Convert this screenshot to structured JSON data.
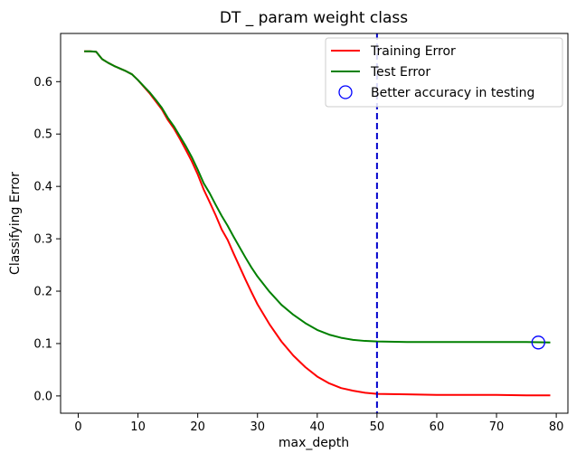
{
  "chart_data": {
    "type": "line",
    "title": "DT _ param weight class",
    "xlabel": "max_depth",
    "ylabel": "Classifying Error",
    "xlim": [
      -2.95,
      81.95
    ],
    "ylim": [
      -0.033,
      0.692
    ],
    "xticks": [
      0,
      10,
      20,
      30,
      40,
      50,
      60,
      70,
      80
    ],
    "yticks": [
      0.0,
      0.1,
      0.2,
      0.3,
      0.4,
      0.5,
      0.6
    ],
    "xtick_labels": [
      "0",
      "10",
      "20",
      "30",
      "40",
      "50",
      "60",
      "70",
      "80"
    ],
    "ytick_labels": [
      "0.0",
      "0.1",
      "0.2",
      "0.3",
      "0.4",
      "0.5",
      "0.6"
    ],
    "legend_position": "top-right",
    "grid": false,
    "series": [
      {
        "name": "Training Error",
        "color": "#ff0000",
        "x": [
          1,
          2,
          3,
          4,
          5,
          6,
          7,
          8,
          9,
          10,
          11,
          12,
          13,
          14,
          15,
          16,
          17,
          18,
          19,
          20,
          21,
          22,
          23,
          24,
          25,
          26,
          27,
          28,
          29,
          30,
          32,
          34,
          36,
          38,
          40,
          42,
          44,
          46,
          48,
          50,
          55,
          60,
          65,
          70,
          75,
          79
        ],
        "y": [
          0.658,
          0.658,
          0.657,
          0.643,
          0.636,
          0.63,
          0.625,
          0.62,
          0.614,
          0.603,
          0.59,
          0.577,
          0.562,
          0.547,
          0.527,
          0.511,
          0.491,
          0.47,
          0.448,
          0.423,
          0.394,
          0.37,
          0.345,
          0.318,
          0.298,
          0.272,
          0.247,
          0.222,
          0.198,
          0.175,
          0.137,
          0.104,
          0.077,
          0.055,
          0.037,
          0.024,
          0.015,
          0.01,
          0.006,
          0.004,
          0.003,
          0.002,
          0.002,
          0.002,
          0.001,
          0.001
        ]
      },
      {
        "name": "Test Error",
        "color": "#008000",
        "x": [
          1,
          2,
          3,
          4,
          5,
          6,
          7,
          8,
          9,
          10,
          11,
          12,
          13,
          14,
          15,
          16,
          17,
          18,
          19,
          20,
          21,
          22,
          23,
          24,
          25,
          26,
          27,
          28,
          29,
          30,
          32,
          34,
          36,
          38,
          40,
          42,
          44,
          46,
          48,
          50,
          55,
          60,
          65,
          70,
          75,
          79
        ],
        "y": [
          0.658,
          0.658,
          0.657,
          0.643,
          0.636,
          0.63,
          0.625,
          0.62,
          0.614,
          0.603,
          0.591,
          0.579,
          0.565,
          0.55,
          0.531,
          0.515,
          0.496,
          0.477,
          0.456,
          0.432,
          0.406,
          0.387,
          0.365,
          0.344,
          0.325,
          0.304,
          0.284,
          0.264,
          0.245,
          0.228,
          0.199,
          0.174,
          0.155,
          0.139,
          0.126,
          0.117,
          0.111,
          0.107,
          0.105,
          0.104,
          0.103,
          0.103,
          0.103,
          0.103,
          0.103,
          0.102
        ]
      }
    ],
    "markers": [
      {
        "name": "Better accuracy in testing",
        "x": 77,
        "y": 0.102,
        "color": "#0000ff",
        "shape": "open-circle"
      }
    ],
    "vlines": [
      {
        "x": 50,
        "color": "#0000cc",
        "style": "dashed"
      }
    ]
  }
}
